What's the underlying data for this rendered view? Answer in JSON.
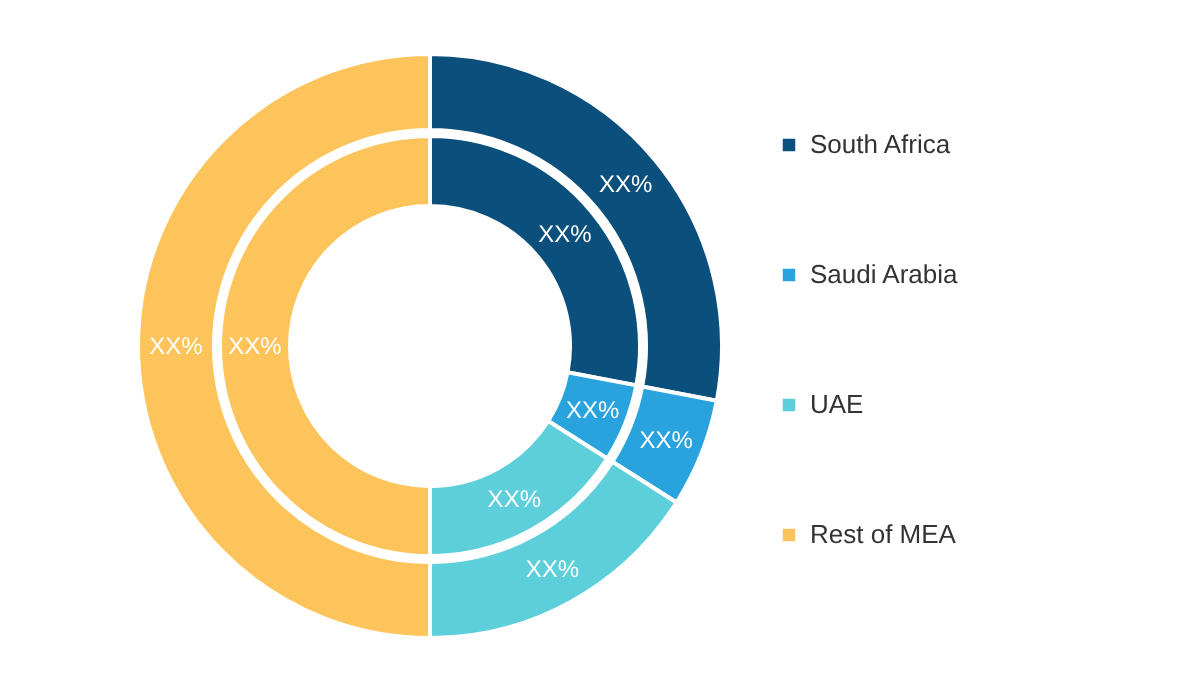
{
  "chart_data": {
    "type": "donut",
    "categories": [
      "South Africa",
      "Saudi Arabia",
      "UAE",
      "Rest of MEA"
    ],
    "colors": [
      "#0b4f7c",
      "#29a3dd",
      "#5ccfdb",
      "#fec45c"
    ],
    "series": [
      {
        "values": [
          28,
          6,
          16,
          50
        ],
        "value_labels": [
          "XX%",
          "XX%",
          "XX%",
          "XX%"
        ]
      },
      {
        "values": [
          28,
          6,
          16,
          50
        ],
        "value_labels": [
          "XX%",
          "XX%",
          "XX%",
          "XX%"
        ]
      }
    ],
    "legend": "right"
  }
}
